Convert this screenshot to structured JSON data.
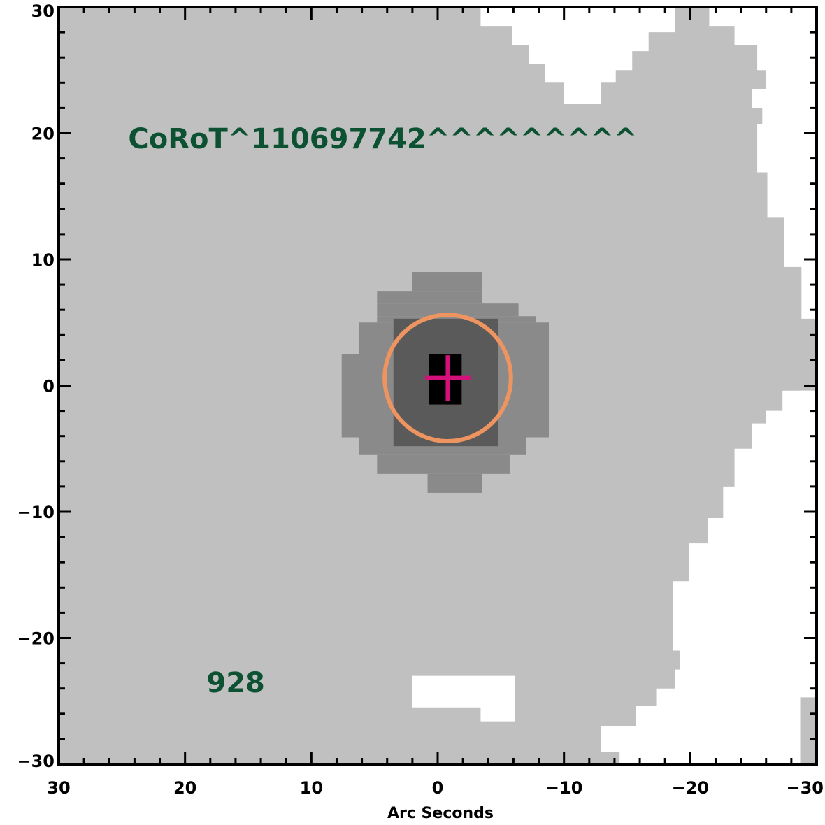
{
  "chart_data": {
    "type": "heatmap",
    "title": "",
    "xlabel": "Arc Seconds",
    "ylabel": "",
    "xlim": [
      30,
      -30
    ],
    "ylim": [
      -30,
      30
    ],
    "x_ticks": [
      30,
      20,
      10,
      0,
      -10,
      -20,
      -30
    ],
    "y_ticks": [
      30,
      20,
      10,
      0,
      -10,
      -20,
      -30
    ],
    "x_tick_labels": [
      "30",
      "20",
      "10",
      "0",
      "−10",
      "−20",
      "−30"
    ],
    "y_tick_labels": [
      "30",
      "20",
      "10",
      "0",
      "−10",
      "−20",
      "−30"
    ],
    "annotations": [
      {
        "text": "CoRoT^110697742^^^^^^^^^",
        "x": 24.5,
        "y": 18.8,
        "color": "#0b5132"
      },
      {
        "text": "928",
        "x": 18.3,
        "y": -24.3,
        "color": "#0b5132"
      }
    ],
    "levels": [
      {
        "name": "background",
        "color": "#c0c0c0"
      },
      {
        "name": "outer-halo",
        "color": "#8a8a8a"
      },
      {
        "name": "inner-halo",
        "color": "#5a5a5a"
      },
      {
        "name": "core",
        "color": "#000000"
      }
    ],
    "outer_halo_rows": [
      {
        "y": [
          7.5,
          9.0
        ],
        "x": [
          2.0,
          -3.5
        ]
      },
      {
        "y": [
          6.5,
          7.5
        ],
        "x": [
          4.8,
          -3.5
        ]
      },
      {
        "y": [
          5.5,
          6.5
        ],
        "x": [
          4.8,
          -6.4
        ]
      },
      {
        "y": [
          5.0,
          5.5
        ],
        "x": [
          4.8,
          -7.8
        ]
      },
      {
        "y": [
          2.5,
          5.0
        ],
        "x": [
          6.2,
          -8.8
        ]
      },
      {
        "y": [
          -4.1,
          2.5
        ],
        "x": [
          7.6,
          -8.8
        ]
      },
      {
        "y": [
          -5.5,
          -4.1
        ],
        "x": [
          6.2,
          -7.0
        ]
      },
      {
        "y": [
          -7.0,
          -5.5
        ],
        "x": [
          4.8,
          -5.7
        ]
      },
      {
        "y": [
          -8.5,
          -7.0
        ],
        "x": [
          0.8,
          -3.5
        ]
      }
    ],
    "inner_halo": {
      "x": [
        3.5,
        -4.8
      ],
      "y": [
        -4.8,
        5.3
      ]
    },
    "core": {
      "x": [
        0.7,
        -1.9
      ],
      "y": [
        -1.5,
        2.5
      ]
    },
    "white_regions": [
      [
        [
          -3.4,
          30
        ],
        [
          -30,
          30
        ],
        [
          -30,
          5.3
        ],
        [
          -28.8,
          5.3
        ],
        [
          -28.8,
          9.4
        ],
        [
          -27.4,
          9.4
        ],
        [
          -27.4,
          13.3
        ],
        [
          -26.1,
          13.3
        ],
        [
          -26.1,
          16.9
        ],
        [
          -25.3,
          16.9
        ],
        [
          -25.3,
          20.7
        ],
        [
          -25.7,
          20.7
        ],
        [
          -25.7,
          22.0
        ],
        [
          -24.9,
          22.0
        ],
        [
          -24.9,
          23.5
        ],
        [
          -26.0,
          23.5
        ],
        [
          -26.0,
          25.0
        ],
        [
          -25.3,
          25.0
        ],
        [
          -25.3,
          27.0
        ],
        [
          -23.5,
          27.0
        ],
        [
          -23.5,
          28.5
        ],
        [
          -21.5,
          28.5
        ],
        [
          -21.5,
          30
        ],
        [
          -18.8,
          30
        ],
        [
          -18.8,
          28.0
        ],
        [
          -16.7,
          28.0
        ],
        [
          -16.7,
          26.5
        ],
        [
          -15.4,
          26.5
        ],
        [
          -15.4,
          25.0
        ],
        [
          -14.1,
          25.0
        ],
        [
          -14.1,
          24.0
        ],
        [
          -12.9,
          24.0
        ],
        [
          -12.9,
          22.3
        ],
        [
          -10.0,
          22.3
        ],
        [
          -10.0,
          24.0
        ],
        [
          -8.5,
          24.0
        ],
        [
          -8.5,
          25.5
        ],
        [
          -7.2,
          25.5
        ],
        [
          -7.2,
          27.0
        ],
        [
          -5.9,
          27.0
        ],
        [
          -5.9,
          28.5
        ],
        [
          -3.4,
          28.5
        ]
      ],
      [
        [
          -30,
          2.5
        ],
        [
          -30,
          -23.5
        ],
        [
          -29.6,
          -23.5
        ],
        [
          -29.6,
          -22.2
        ],
        [
          -28.1,
          -22.2
        ],
        [
          -28.1,
          -18.5
        ],
        [
          -26.8,
          -18.5
        ],
        [
          -26.8,
          -16.5
        ],
        [
          -25.5,
          -16.5
        ],
        [
          -25.5,
          -9.5
        ],
        [
          -24.0,
          -9.5
        ],
        [
          -24.0,
          -6.5
        ],
        [
          -26.1,
          -6.5
        ],
        [
          -26.1,
          -3.0
        ],
        [
          -28.6,
          -3.0
        ],
        [
          -28.6,
          -0.4
        ],
        [
          -30,
          -0.4
        ]
      ],
      [
        [
          -30,
          -26.2
        ],
        [
          -28.7,
          -26.2
        ],
        [
          -28.7,
          -30
        ],
        [
          -14.4,
          -30
        ],
        [
          -14.4,
          -29.0
        ],
        [
          -12.9,
          -29.0
        ],
        [
          -12.9,
          -27.0
        ],
        [
          -15.7,
          -27.0
        ],
        [
          -15.7,
          -25.4
        ],
        [
          -17.3,
          -25.4
        ],
        [
          -17.3,
          -24.0
        ],
        [
          -18.8,
          -24.0
        ],
        [
          -18.8,
          -22.5
        ],
        [
          -19.2,
          -22.5
        ],
        [
          -19.2,
          -21.0
        ],
        [
          -18.6,
          -21.0
        ],
        [
          -18.6,
          -15.5
        ],
        [
          -19.9,
          -15.5
        ],
        [
          -19.9,
          -12.5
        ],
        [
          -21.4,
          -12.5
        ],
        [
          -21.4,
          -10.5
        ],
        [
          -22.6,
          -10.5
        ],
        [
          -22.6,
          -8.0
        ],
        [
          -23.5,
          -8.0
        ],
        [
          -23.5,
          -5.0
        ],
        [
          -24.9,
          -5.0
        ],
        [
          -24.9,
          -3.0
        ],
        [
          -26.0,
          -3.0
        ],
        [
          -26.0,
          -2.0
        ],
        [
          -27.3,
          -2.0
        ],
        [
          -27.3,
          -0.4
        ],
        [
          -30,
          -0.4
        ]
      ],
      [
        [
          2.0,
          -23.0
        ],
        [
          -6.1,
          -23.0
        ],
        [
          -6.1,
          -26.6
        ],
        [
          -3.4,
          -26.6
        ],
        [
          -3.4,
          -25.5
        ],
        [
          2.0,
          -25.5
        ]
      ]
    ],
    "white_patches": [
      [
        [
          -28.7,
          -24.7
        ],
        [
          -30,
          -24.7
        ],
        [
          -30,
          -27.2
        ],
        [
          -28.7,
          -27.2
        ]
      ]
    ],
    "aperture_circle": {
      "center": [
        -0.8,
        0.6
      ],
      "radius": 5.0,
      "color": "#ee9460"
    },
    "crosshair": {
      "center": [
        -0.8,
        0.6
      ],
      "half_width": 1.8,
      "half_height": 1.8,
      "color": "#d4107a"
    },
    "grid": false,
    "legend": "none"
  }
}
